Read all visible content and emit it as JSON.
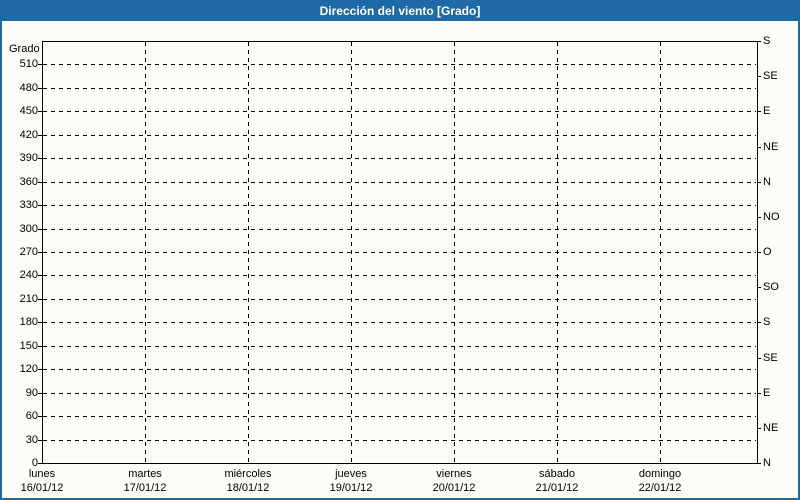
{
  "window": {
    "title": "Dirección del viento [Grado]"
  },
  "colors": {
    "frame_blue": "#1e6aa6",
    "title_text": "#ffffff",
    "plot_border": "#000000",
    "grid": "#000000",
    "background": "#fdfdf8",
    "text": "#000000"
  },
  "chart_data": {
    "type": "line",
    "title": "Dirección del viento [Grado]",
    "grid": true,
    "legend": false,
    "y_left": {
      "label": "Grado",
      "min": 0,
      "max": 540,
      "tick_step": 30,
      "tick_values": [
        0,
        30,
        60,
        90,
        120,
        150,
        180,
        210,
        240,
        270,
        300,
        330,
        360,
        390,
        420,
        450,
        480,
        510
      ]
    },
    "y_right": {
      "tick_step": 45,
      "tick_values": [
        0,
        45,
        90,
        135,
        180,
        225,
        270,
        315,
        360,
        405,
        450,
        495,
        540
      ],
      "tick_labels_bottom_to_top": [
        "N",
        "NE",
        "E",
        "SE",
        "S",
        "SO",
        "O",
        "NO",
        "N",
        "NE",
        "E",
        "SE",
        "S"
      ]
    },
    "x": {
      "categories": [
        {
          "day": "lunes",
          "date": "16/01/12"
        },
        {
          "day": "martes",
          "date": "17/01/12"
        },
        {
          "day": "miércoles",
          "date": "18/01/12"
        },
        {
          "day": "jueves",
          "date": "19/01/12"
        },
        {
          "day": "viernes",
          "date": "20/01/12"
        },
        {
          "day": "sábado",
          "date": "21/01/12"
        },
        {
          "day": "domingo",
          "date": "22/01/12"
        }
      ]
    },
    "series": []
  }
}
